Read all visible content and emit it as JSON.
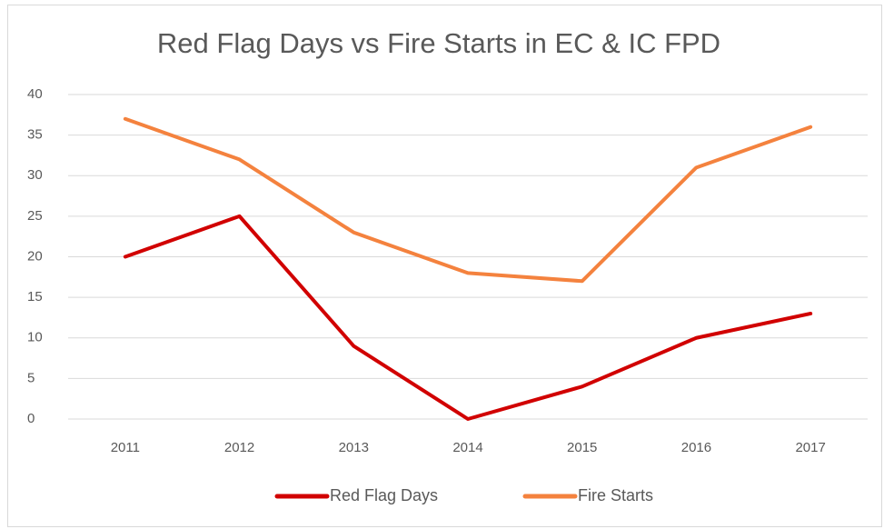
{
  "chart_data": {
    "type": "line",
    "title": "Red Flag Days vs Fire Starts in EC & IC FPD",
    "categories": [
      "2011",
      "2012",
      "2013",
      "2014",
      "2015",
      "2016",
      "2017"
    ],
    "series": [
      {
        "name": "Red Flag Days",
        "color": "#d10000",
        "values": [
          20,
          25,
          9,
          0,
          4,
          10,
          13
        ]
      },
      {
        "name": "Fire Starts",
        "color": "#f4823e",
        "values": [
          37,
          32,
          23,
          18,
          17,
          31,
          36
        ]
      }
    ],
    "ylim": [
      0,
      40
    ],
    "yticks": [
      0,
      5,
      10,
      15,
      20,
      25,
      30,
      35,
      40
    ],
    "grid": true,
    "legend": "bottom"
  }
}
